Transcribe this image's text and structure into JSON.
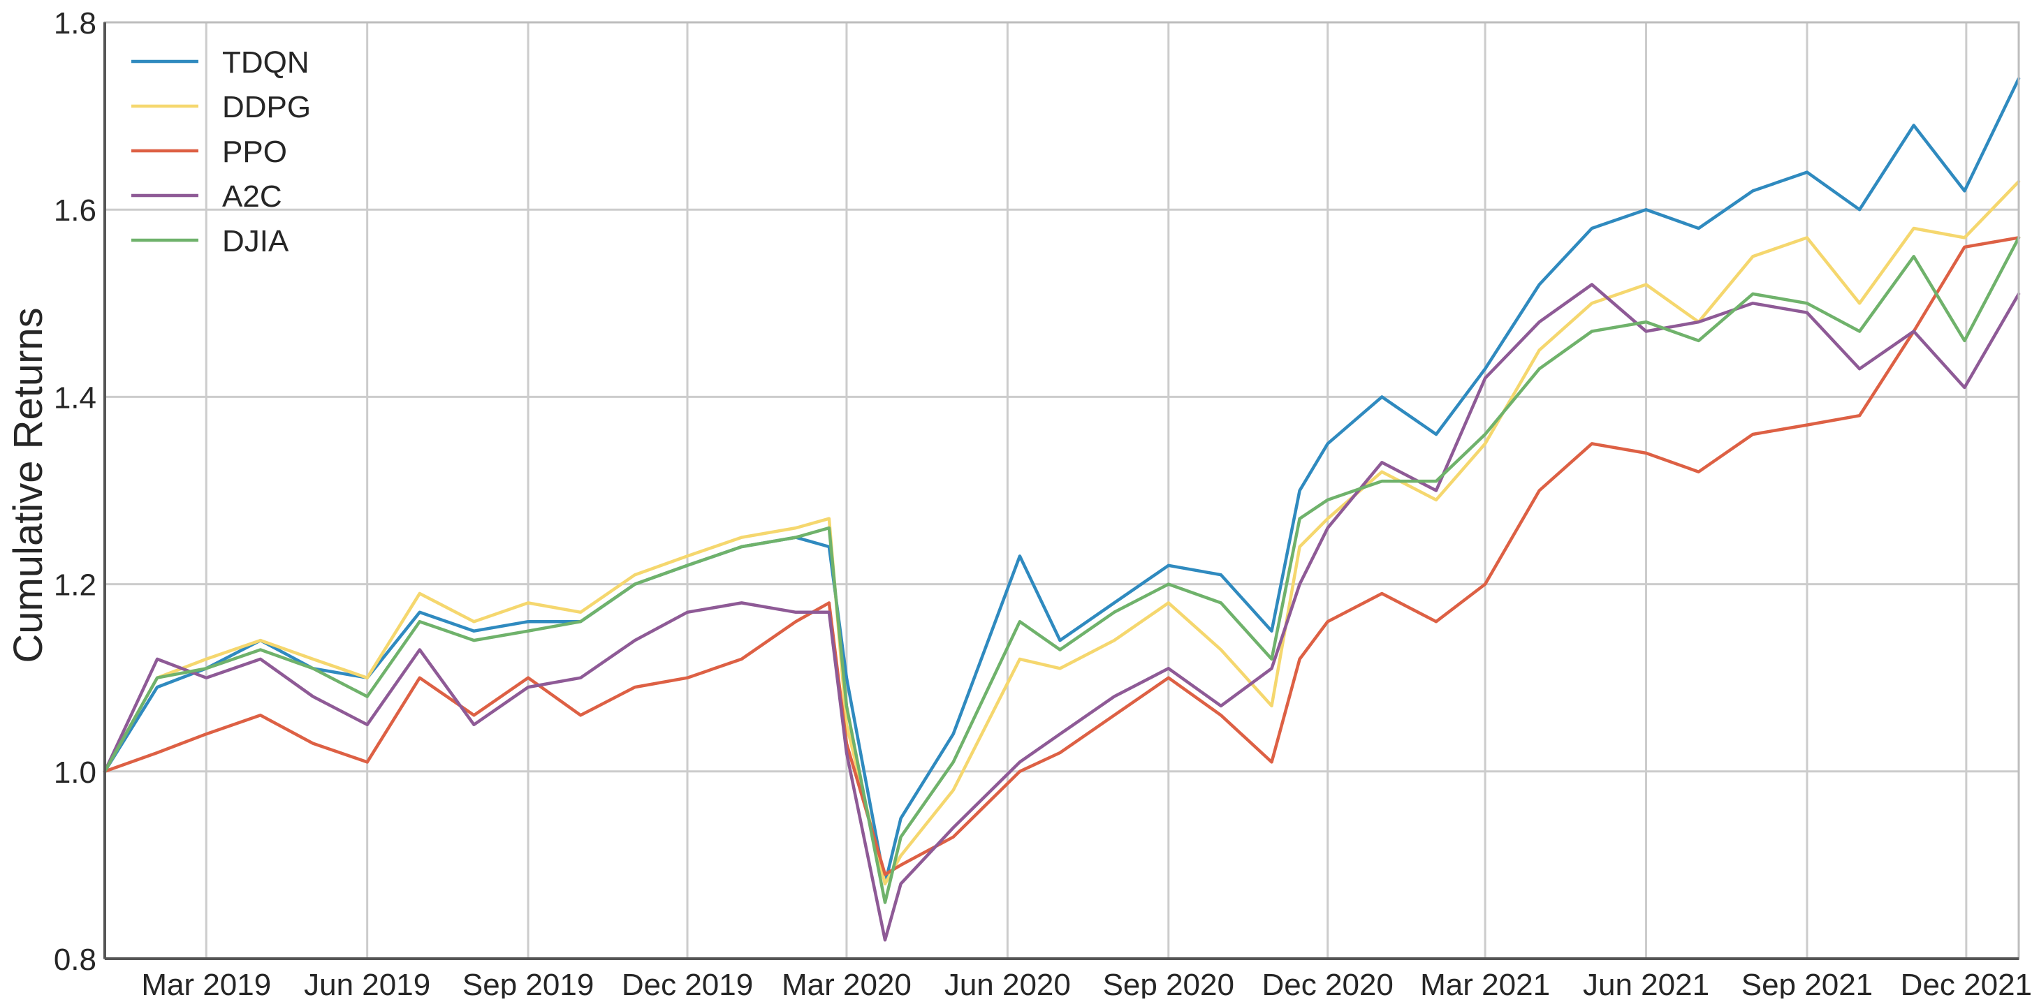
{
  "chart_data": {
    "type": "line",
    "title": "",
    "xlabel": "",
    "ylabel": "Cumulative Returns",
    "xlim": [
      "2019-01-02",
      "2021-12-31"
    ],
    "ylim": [
      0.8,
      1.8
    ],
    "grid": true,
    "legend_position": "top-left",
    "y_ticks": [
      0.8,
      1.0,
      1.2,
      1.4,
      1.6,
      1.8
    ],
    "y_tick_labels": [
      "0.8",
      "1.0",
      "1.2",
      "1.4",
      "1.6",
      "1.8"
    ],
    "x_ticks": [
      "2019-03-01",
      "2019-06-01",
      "2019-09-01",
      "2019-12-01",
      "2020-03-01",
      "2020-06-01",
      "2020-09-01",
      "2020-12-01",
      "2021-03-01",
      "2021-06-01",
      "2021-09-01",
      "2021-12-01"
    ],
    "x_tick_labels": [
      "Mar 2019",
      "Jun 2019",
      "Sep 2019",
      "Dec 2019",
      "Mar 2020",
      "Jun 2020",
      "Sep 2020",
      "Dec 2020",
      "Mar 2021",
      "Jun 2021",
      "Sep 2021",
      "Dec 2021"
    ],
    "x": [
      "2019-01-02",
      "2019-02-01",
      "2019-03-01",
      "2019-04-01",
      "2019-05-01",
      "2019-06-01",
      "2019-07-01",
      "2019-08-01",
      "2019-09-01",
      "2019-10-01",
      "2019-11-01",
      "2019-12-01",
      "2020-01-01",
      "2020-02-01",
      "2020-02-20",
      "2020-03-01",
      "2020-03-23",
      "2020-04-01",
      "2020-05-01",
      "2020-06-08",
      "2020-07-01",
      "2020-08-01",
      "2020-09-01",
      "2020-10-01",
      "2020-10-30",
      "2020-11-15",
      "2020-12-01",
      "2021-01-01",
      "2021-02-01",
      "2021-03-01",
      "2021-04-01",
      "2021-05-01",
      "2021-06-01",
      "2021-07-01",
      "2021-08-01",
      "2021-09-01",
      "2021-10-01",
      "2021-11-01",
      "2021-11-30",
      "2021-12-31"
    ],
    "series": [
      {
        "name": "TDQN",
        "color": "#2f8abf",
        "values": [
          1.0,
          1.09,
          1.11,
          1.14,
          1.11,
          1.1,
          1.17,
          1.15,
          1.16,
          1.16,
          1.2,
          1.22,
          1.24,
          1.25,
          1.24,
          1.1,
          0.88,
          0.95,
          1.04,
          1.23,
          1.14,
          1.18,
          1.22,
          1.21,
          1.15,
          1.3,
          1.35,
          1.4,
          1.36,
          1.43,
          1.52,
          1.58,
          1.6,
          1.58,
          1.62,
          1.64,
          1.6,
          1.69,
          1.62,
          1.74
        ]
      },
      {
        "name": "DDPG",
        "color": "#f5d76e",
        "values": [
          1.0,
          1.1,
          1.12,
          1.14,
          1.12,
          1.1,
          1.19,
          1.16,
          1.18,
          1.17,
          1.21,
          1.23,
          1.25,
          1.26,
          1.27,
          1.05,
          0.88,
          0.91,
          0.98,
          1.12,
          1.11,
          1.14,
          1.18,
          1.13,
          1.07,
          1.24,
          1.27,
          1.32,
          1.29,
          1.35,
          1.45,
          1.5,
          1.52,
          1.48,
          1.55,
          1.57,
          1.5,
          1.58,
          1.57,
          1.63
        ]
      },
      {
        "name": "PPO",
        "color": "#dd6044",
        "values": [
          1.0,
          1.02,
          1.04,
          1.06,
          1.03,
          1.01,
          1.1,
          1.06,
          1.1,
          1.06,
          1.09,
          1.1,
          1.12,
          1.16,
          1.18,
          1.03,
          0.89,
          0.9,
          0.93,
          1.0,
          1.02,
          1.06,
          1.1,
          1.06,
          1.01,
          1.12,
          1.16,
          1.19,
          1.16,
          1.2,
          1.3,
          1.35,
          1.34,
          1.32,
          1.36,
          1.37,
          1.38,
          1.47,
          1.56,
          1.57
        ]
      },
      {
        "name": "A2C",
        "color": "#8e5a96",
        "values": [
          1.0,
          1.12,
          1.1,
          1.12,
          1.08,
          1.05,
          1.13,
          1.05,
          1.09,
          1.1,
          1.14,
          1.17,
          1.18,
          1.17,
          1.17,
          1.02,
          0.82,
          0.88,
          0.94,
          1.01,
          1.04,
          1.08,
          1.11,
          1.07,
          1.11,
          1.2,
          1.26,
          1.33,
          1.3,
          1.42,
          1.48,
          1.52,
          1.47,
          1.48,
          1.5,
          1.49,
          1.43,
          1.47,
          1.41,
          1.51
        ]
      },
      {
        "name": "DJIA",
        "color": "#6fb26b",
        "values": [
          1.0,
          1.1,
          1.11,
          1.13,
          1.11,
          1.08,
          1.16,
          1.14,
          1.15,
          1.16,
          1.2,
          1.22,
          1.24,
          1.25,
          1.26,
          1.07,
          0.86,
          0.93,
          1.01,
          1.16,
          1.13,
          1.17,
          1.2,
          1.18,
          1.12,
          1.27,
          1.29,
          1.31,
          1.31,
          1.36,
          1.43,
          1.47,
          1.48,
          1.46,
          1.51,
          1.5,
          1.47,
          1.55,
          1.46,
          1.57
        ]
      }
    ]
  }
}
